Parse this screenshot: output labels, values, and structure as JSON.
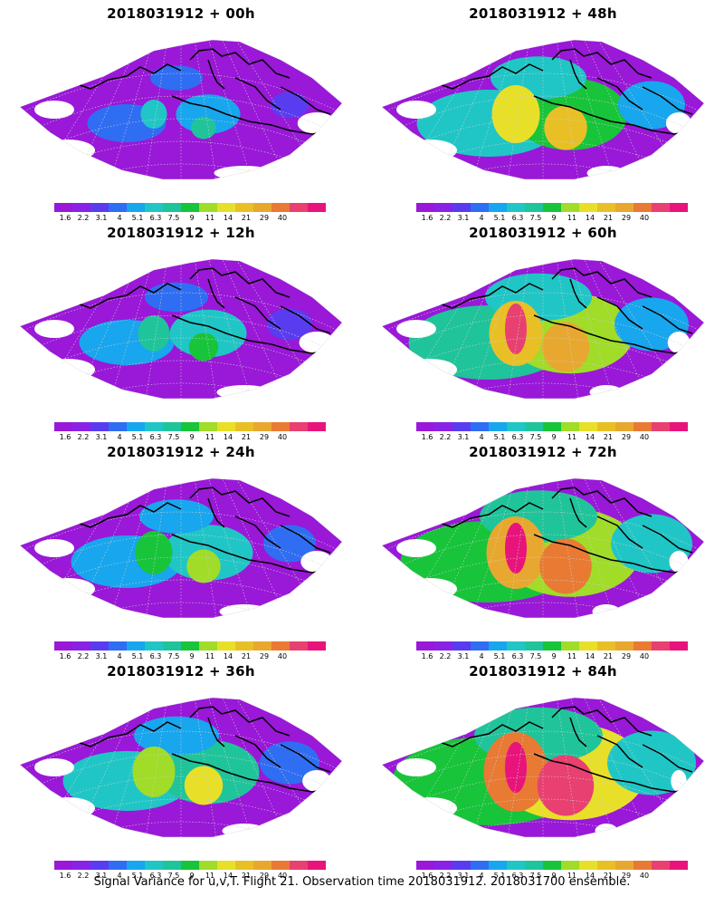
{
  "panels": [
    {
      "title": "2018031912 + 00h",
      "intensity": 0.15
    },
    {
      "title": "2018031912 + 48h",
      "intensity": 0.55
    },
    {
      "title": "2018031912 + 12h",
      "intensity": 0.25
    },
    {
      "title": "2018031912 + 60h",
      "intensity": 0.65
    },
    {
      "title": "2018031912 + 24h",
      "intensity": 0.35
    },
    {
      "title": "2018031912 + 72h",
      "intensity": 0.75
    },
    {
      "title": "2018031912 + 36h",
      "intensity": 0.45
    },
    {
      "title": "2018031912 + 84h",
      "intensity": 0.85
    }
  ],
  "colorbar": {
    "colors": [
      "#9a18d8",
      "#8a22e6",
      "#5a3cf0",
      "#2f6ef2",
      "#18a6ee",
      "#20c6c6",
      "#20c49a",
      "#18c43a",
      "#a0dc28",
      "#e8e028",
      "#e8c026",
      "#e8a830",
      "#e87a34",
      "#e84070",
      "#e8147c"
    ],
    "labels": [
      "1.6",
      "2.2",
      "3.1",
      "4",
      "5.1",
      "6.3",
      "7.5",
      "9",
      "11",
      "14",
      "21",
      "29",
      "40"
    ]
  },
  "footer": "Signal Variance for u,v,T. Flight 21. Observation time 2018031912. 2018031700 ensemble."
}
